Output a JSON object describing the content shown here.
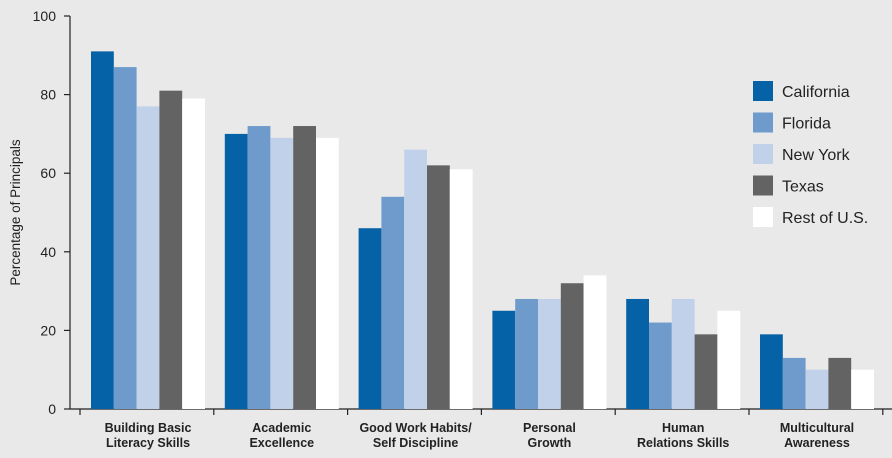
{
  "chart_data": {
    "type": "bar",
    "ylabel": "Percentage of Principals",
    "ylim": [
      0,
      100
    ],
    "yticks": [
      0,
      20,
      40,
      60,
      80,
      100
    ],
    "categories": [
      [
        "Building Basic",
        "Literacy Skills"
      ],
      [
        "Academic",
        "Excellence"
      ],
      [
        "Good Work Habits/",
        "Self Discipline"
      ],
      [
        "Personal",
        "Growth"
      ],
      [
        "Human",
        "Relations Skills"
      ],
      [
        "Multicultural",
        "Awareness"
      ]
    ],
    "series": [
      {
        "name": "California",
        "color": "#0662a6",
        "values": [
          91,
          70,
          46,
          25,
          28,
          19
        ]
      },
      {
        "name": "Florida",
        "color": "#6f9bcc",
        "values": [
          87,
          72,
          54,
          28,
          22,
          13
        ]
      },
      {
        "name": "New York",
        "color": "#c1d1e9",
        "values": [
          77,
          69,
          66,
          28,
          28,
          10
        ]
      },
      {
        "name": "Texas",
        "color": "#636363",
        "values": [
          81,
          72,
          62,
          32,
          19,
          13
        ]
      },
      {
        "name": "Rest of U.S.",
        "color": "#ffffff",
        "values": [
          79,
          69,
          61,
          34,
          25,
          10
        ]
      }
    ],
    "legend_position": "right",
    "grid": false
  }
}
